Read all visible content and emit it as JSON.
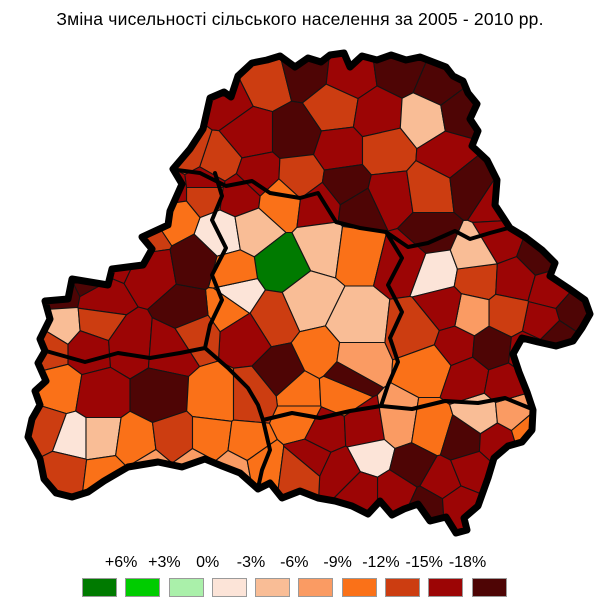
{
  "title": "Зміна чисельності сільського населення за 2005 - 2010 рр.",
  "legend": {
    "boundary_labels": [
      "+6%",
      "+3%",
      "0%",
      "-3%",
      "-6%",
      "-9%",
      "-12%",
      "-15%",
      "-18%"
    ],
    "class_colors": [
      "#007A00",
      "#00CC00",
      "#AAF0AA",
      "#FCE4D8",
      "#F9BD96",
      "#FA9B63",
      "#FA7118",
      "#CC3D11",
      "#9C0505",
      "#4E0505"
    ]
  },
  "chart_data": {
    "type": "choropleth",
    "title": "Зміна чисельності сільського населення за 2005 - 2010 рр.",
    "region": "Belarus, administrative raions",
    "value_scale_boundaries_percent": [
      6,
      3,
      0,
      -3,
      -6,
      -9,
      -12,
      -15,
      -18
    ],
    "class_colors": [
      "#007A00",
      "#00CC00",
      "#AAF0AA",
      "#FCE4D8",
      "#F9BD96",
      "#FA9B63",
      "#FA7118",
      "#CC3D11",
      "#9C0505",
      "#4E0505"
    ],
    "legend_position": "bottom"
  },
  "map": {
    "country_border_color": "#000000",
    "oblast_border_color": "#000000",
    "district_border_color": "#141414",
    "outline": [
      [
        210,
        98
      ],
      [
        224,
        92
      ],
      [
        231,
        97
      ],
      [
        238,
        76
      ],
      [
        252,
        63
      ],
      [
        267,
        60
      ],
      [
        280,
        56
      ],
      [
        295,
        67
      ],
      [
        308,
        58
      ],
      [
        321,
        62
      ],
      [
        330,
        55
      ],
      [
        344,
        53
      ],
      [
        350,
        67
      ],
      [
        362,
        56
      ],
      [
        377,
        60
      ],
      [
        391,
        55
      ],
      [
        406,
        60
      ],
      [
        420,
        57
      ],
      [
        433,
        62
      ],
      [
        446,
        67
      ],
      [
        453,
        76
      ],
      [
        463,
        81
      ],
      [
        468,
        93
      ],
      [
        477,
        104
      ],
      [
        470,
        119
      ],
      [
        478,
        131
      ],
      [
        472,
        146
      ],
      [
        487,
        160
      ],
      [
        497,
        180
      ],
      [
        495,
        205
      ],
      [
        510,
        228
      ],
      [
        525,
        237
      ],
      [
        542,
        250
      ],
      [
        555,
        263
      ],
      [
        550,
        276
      ],
      [
        568,
        288
      ],
      [
        585,
        300
      ],
      [
        590,
        314
      ],
      [
        582,
        328
      ],
      [
        573,
        341
      ],
      [
        556,
        346
      ],
      [
        538,
        342
      ],
      [
        522,
        338
      ],
      [
        513,
        354
      ],
      [
        519,
        372
      ],
      [
        527,
        392
      ],
      [
        533,
        410
      ],
      [
        532,
        430
      ],
      [
        522,
        442
      ],
      [
        508,
        446
      ],
      [
        494,
        458
      ],
      [
        488,
        478
      ],
      [
        478,
        506
      ],
      [
        464,
        518
      ],
      [
        467,
        530
      ],
      [
        456,
        533
      ],
      [
        446,
        517
      ],
      [
        430,
        521
      ],
      [
        418,
        504
      ],
      [
        404,
        509
      ],
      [
        392,
        515
      ],
      [
        380,
        501
      ],
      [
        368,
        514
      ],
      [
        352,
        506
      ],
      [
        335,
        501
      ],
      [
        318,
        498
      ],
      [
        300,
        491
      ],
      [
        282,
        498
      ],
      [
        270,
        483
      ],
      [
        258,
        489
      ],
      [
        240,
        473
      ],
      [
        222,
        466
      ],
      [
        205,
        459
      ],
      [
        182,
        467
      ],
      [
        158,
        462
      ],
      [
        128,
        467
      ],
      [
        104,
        481
      ],
      [
        88,
        492
      ],
      [
        72,
        497
      ],
      [
        56,
        493
      ],
      [
        44,
        479
      ],
      [
        40,
        459
      ],
      [
        28,
        437
      ],
      [
        32,
        419
      ],
      [
        40,
        405
      ],
      [
        35,
        391
      ],
      [
        46,
        381
      ],
      [
        38,
        363
      ],
      [
        45,
        351
      ],
      [
        40,
        339
      ],
      [
        50,
        319
      ],
      [
        45,
        301
      ],
      [
        68,
        299
      ],
      [
        72,
        279
      ],
      [
        108,
        285
      ],
      [
        112,
        269
      ],
      [
        143,
        265
      ],
      [
        152,
        249
      ],
      [
        142,
        237
      ],
      [
        168,
        225
      ],
      [
        170,
        211
      ],
      [
        182,
        184
      ],
      [
        173,
        169
      ],
      [
        190,
        149
      ],
      [
        203,
        129
      ]
    ],
    "oblast_borders": [
      [
        [
          177,
          170
        ],
        [
          200,
          173
        ],
        [
          226,
          186
        ],
        [
          252,
          181
        ],
        [
          270,
          193
        ],
        [
          300,
          198
        ],
        [
          318,
          193
        ],
        [
          336,
          222
        ],
        [
          360,
          228
        ],
        [
          386,
          232
        ],
        [
          408,
          247
        ],
        [
          428,
          243
        ],
        [
          455,
          231
        ],
        [
          470,
          239
        ],
        [
          490,
          233
        ],
        [
          512,
          227
        ],
        [
          536,
          229
        ]
      ],
      [
        [
          215,
          173
        ],
        [
          222,
          196
        ],
        [
          212,
          220
        ],
        [
          226,
          248
        ],
        [
          212,
          275
        ],
        [
          222,
          300
        ],
        [
          210,
          325
        ],
        [
          205,
          348
        ],
        [
          180,
          353
        ],
        [
          150,
          358
        ],
        [
          118,
          353
        ],
        [
          85,
          362
        ],
        [
          46,
          351
        ]
      ],
      [
        [
          205,
          348
        ],
        [
          228,
          368
        ],
        [
          248,
          388
        ],
        [
          258,
          405
        ],
        [
          263,
          420
        ],
        [
          270,
          450
        ],
        [
          262,
          470
        ],
        [
          258,
          488
        ]
      ],
      [
        [
          386,
          232
        ],
        [
          402,
          258
        ],
        [
          388,
          285
        ],
        [
          402,
          312
        ],
        [
          390,
          338
        ],
        [
          398,
          362
        ],
        [
          388,
          385
        ],
        [
          381,
          406
        ]
      ],
      [
        [
          263,
          420
        ],
        [
          292,
          413
        ],
        [
          320,
          418
        ],
        [
          350,
          411
        ],
        [
          381,
          406
        ],
        [
          412,
          409
        ],
        [
          445,
          401
        ],
        [
          478,
          403
        ],
        [
          505,
          398
        ],
        [
          532,
          409
        ]
      ]
    ],
    "districts": [
      [
        225,
        100,
        8
      ],
      [
        265,
        80,
        7
      ],
      [
        305,
        70,
        9
      ],
      [
        350,
        75,
        8
      ],
      [
        400,
        68,
        9
      ],
      [
        440,
        85,
        9
      ],
      [
        335,
        108,
        7
      ],
      [
        377,
        115,
        8
      ],
      [
        425,
        118,
        4
      ],
      [
        460,
        112,
        9
      ],
      [
        250,
        135,
        8
      ],
      [
        295,
        135,
        9
      ],
      [
        340,
        150,
        8
      ],
      [
        385,
        150,
        7
      ],
      [
        448,
        155,
        8
      ],
      [
        218,
        162,
        7
      ],
      [
        258,
        176,
        8
      ],
      [
        300,
        178,
        7
      ],
      [
        345,
        185,
        9
      ],
      [
        390,
        196,
        8
      ],
      [
        430,
        190,
        7
      ],
      [
        472,
        185,
        9
      ],
      [
        498,
        202,
        8
      ],
      [
        205,
        190,
        7
      ],
      [
        240,
        195,
        8
      ],
      [
        280,
        200,
        6
      ],
      [
        320,
        205,
        8
      ],
      [
        360,
        210,
        9
      ],
      [
        222,
        235,
        3
      ],
      [
        253,
        230,
        4
      ],
      [
        280,
        265,
        0
      ],
      [
        325,
        243,
        4
      ],
      [
        355,
        247,
        6
      ],
      [
        237,
        295,
        3
      ],
      [
        308,
        302,
        4
      ],
      [
        355,
        325,
        4
      ],
      [
        272,
        318,
        7
      ],
      [
        232,
        272,
        6
      ],
      [
        228,
        308,
        6
      ],
      [
        245,
        335,
        8
      ],
      [
        283,
        373,
        9
      ],
      [
        320,
        355,
        6
      ],
      [
        355,
        360,
        5
      ],
      [
        300,
        392,
        6
      ],
      [
        340,
        390,
        6
      ],
      [
        345,
        378,
        9
      ],
      [
        188,
        152,
        7
      ],
      [
        205,
        185,
        8
      ],
      [
        168,
        190,
        8
      ],
      [
        172,
        217,
        6
      ],
      [
        145,
        235,
        7
      ],
      [
        118,
        255,
        8
      ],
      [
        88,
        278,
        9
      ],
      [
        60,
        292,
        9
      ],
      [
        100,
        300,
        8
      ],
      [
        62,
        325,
        4
      ],
      [
        97,
        322,
        7
      ],
      [
        150,
        270,
        8
      ],
      [
        187,
        312,
        9
      ],
      [
        196,
        262,
        9
      ],
      [
        48,
        348,
        7
      ],
      [
        88,
        348,
        8
      ],
      [
        130,
        345,
        8
      ],
      [
        170,
        348,
        8
      ],
      [
        195,
        332,
        7
      ],
      [
        58,
        388,
        6
      ],
      [
        100,
        395,
        8
      ],
      [
        160,
        395,
        9
      ],
      [
        215,
        398,
        6
      ],
      [
        252,
        398,
        7
      ],
      [
        45,
        430,
        7
      ],
      [
        72,
        440,
        3
      ],
      [
        100,
        440,
        4
      ],
      [
        135,
        445,
        6
      ],
      [
        175,
        440,
        7
      ],
      [
        210,
        440,
        6
      ],
      [
        248,
        445,
        6
      ],
      [
        65,
        470,
        7
      ],
      [
        105,
        475,
        6
      ],
      [
        150,
        470,
        5
      ],
      [
        195,
        468,
        5
      ],
      [
        235,
        470,
        5
      ],
      [
        262,
        465,
        6
      ],
      [
        300,
        420,
        6
      ],
      [
        323,
        432,
        8
      ],
      [
        367,
        430,
        8
      ],
      [
        398,
        425,
        5
      ],
      [
        430,
        430,
        6
      ],
      [
        463,
        440,
        9
      ],
      [
        497,
        442,
        8
      ],
      [
        372,
        455,
        3
      ],
      [
        310,
        458,
        8
      ],
      [
        340,
        472,
        8
      ],
      [
        412,
        465,
        9
      ],
      [
        442,
        482,
        8
      ],
      [
        472,
        470,
        8
      ],
      [
        480,
        415,
        4
      ],
      [
        513,
        412,
        5
      ],
      [
        530,
        432,
        6
      ],
      [
        395,
        492,
        8
      ],
      [
        428,
        507,
        9
      ],
      [
        360,
        492,
        8
      ],
      [
        300,
        470,
        7
      ],
      [
        458,
        505,
        8
      ],
      [
        430,
        235,
        9
      ],
      [
        408,
        260,
        8
      ],
      [
        435,
        270,
        3
      ],
      [
        500,
        240,
        8
      ],
      [
        540,
        255,
        9
      ],
      [
        478,
        278,
        7
      ],
      [
        515,
        280,
        8
      ],
      [
        550,
        290,
        8
      ],
      [
        575,
        312,
        9
      ],
      [
        542,
        322,
        8
      ],
      [
        508,
        315,
        7
      ],
      [
        470,
        315,
        5
      ],
      [
        445,
        310,
        8
      ],
      [
        418,
        332,
        7
      ],
      [
        455,
        345,
        8
      ],
      [
        492,
        348,
        9
      ],
      [
        528,
        352,
        8
      ],
      [
        558,
        338,
        9
      ],
      [
        430,
        365,
        6
      ],
      [
        468,
        378,
        8
      ],
      [
        505,
        385,
        8
      ],
      [
        475,
        255,
        4
      ]
    ]
  }
}
